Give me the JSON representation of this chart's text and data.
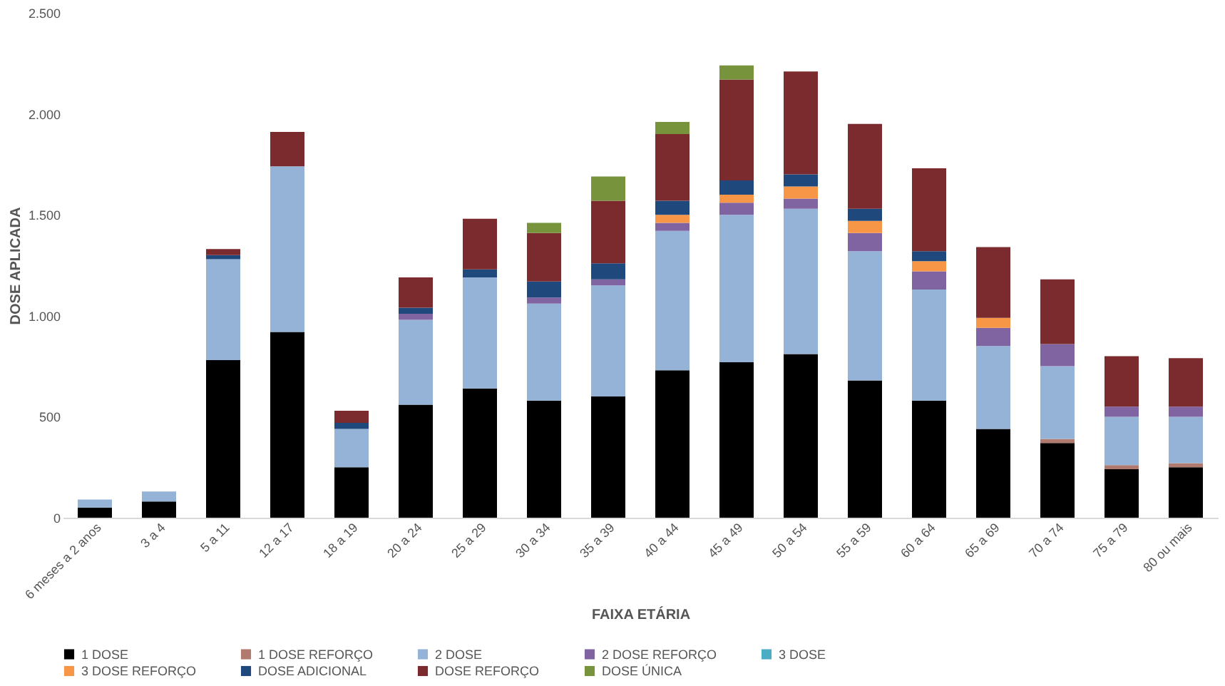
{
  "chart_data": {
    "type": "bar",
    "stacked": true,
    "xlabel": "FAIXA ETÁRIA",
    "ylabel": "DOSE APLICADA",
    "categories": [
      "6 meses a 2 anos",
      "3 a 4",
      "5 a 11",
      "12 a 17",
      "18 a 19",
      "20 a 24",
      "25 a 29",
      "30 a 34",
      "35 a 39",
      "40 a 44",
      "45 a 49",
      "50 a 54",
      "55 a 59",
      "60 a 64",
      "65 a 69",
      "70 a 74",
      "75 a 79",
      "80  ou mais"
    ],
    "series": [
      {
        "name": "1 DOSE",
        "color": "#000000",
        "values": [
          50,
          80,
          780,
          920,
          250,
          560,
          640,
          580,
          600,
          730,
          770,
          810,
          680,
          580,
          440,
          370,
          240,
          250
        ]
      },
      {
        "name": "1 DOSE REFORÇO",
        "color": "#b07a6e",
        "values": [
          0,
          0,
          0,
          0,
          0,
          0,
          0,
          0,
          0,
          0,
          0,
          0,
          0,
          0,
          0,
          20,
          20,
          20
        ]
      },
      {
        "name": "2 DOSE",
        "color": "#95b3d7",
        "values": [
          40,
          50,
          500,
          820,
          190,
          420,
          550,
          480,
          550,
          690,
          730,
          720,
          640,
          550,
          410,
          360,
          240,
          230
        ]
      },
      {
        "name": "2 DOSE REFORÇO",
        "color": "#8064a2",
        "values": [
          0,
          0,
          0,
          0,
          0,
          30,
          0,
          30,
          30,
          40,
          60,
          50,
          90,
          90,
          90,
          110,
          50,
          50
        ]
      },
      {
        "name": "3 DOSE",
        "color": "#4bacc6",
        "values": [
          0,
          0,
          0,
          0,
          0,
          0,
          0,
          0,
          0,
          0,
          0,
          0,
          0,
          0,
          0,
          0,
          0,
          0
        ]
      },
      {
        "name": "3 DOSE REFORÇO",
        "color": "#f79646",
        "values": [
          0,
          0,
          0,
          0,
          0,
          0,
          0,
          0,
          0,
          40,
          40,
          60,
          60,
          50,
          50,
          0,
          0,
          0
        ]
      },
      {
        "name": "DOSE ADICIONAL",
        "color": "#1f497d",
        "values": [
          0,
          0,
          20,
          0,
          30,
          30,
          40,
          80,
          80,
          70,
          70,
          60,
          60,
          50,
          0,
          0,
          0,
          0
        ]
      },
      {
        "name": "DOSE REFORÇO",
        "color": "#7b2a2e",
        "values": [
          0,
          0,
          30,
          170,
          60,
          150,
          250,
          240,
          310,
          330,
          500,
          510,
          420,
          410,
          350,
          320,
          250,
          240
        ]
      },
      {
        "name": "DOSE ÚNICA",
        "color": "#77933c",
        "values": [
          0,
          0,
          0,
          0,
          0,
          0,
          0,
          50,
          120,
          60,
          70,
          0,
          0,
          0,
          0,
          0,
          0,
          0
        ]
      }
    ],
    "ylim": [
      0,
      2500
    ],
    "yticks": [
      0,
      {
        "value": 500,
        "label": "500"
      },
      {
        "value": 1000,
        "label": "1.000"
      },
      {
        "value": 1500,
        "label": "1.500"
      },
      {
        "value": 2000,
        "label": "2.000"
      },
      {
        "value": 2500,
        "label": "2.500"
      }
    ],
    "grid": false,
    "legend": "bottom"
  }
}
